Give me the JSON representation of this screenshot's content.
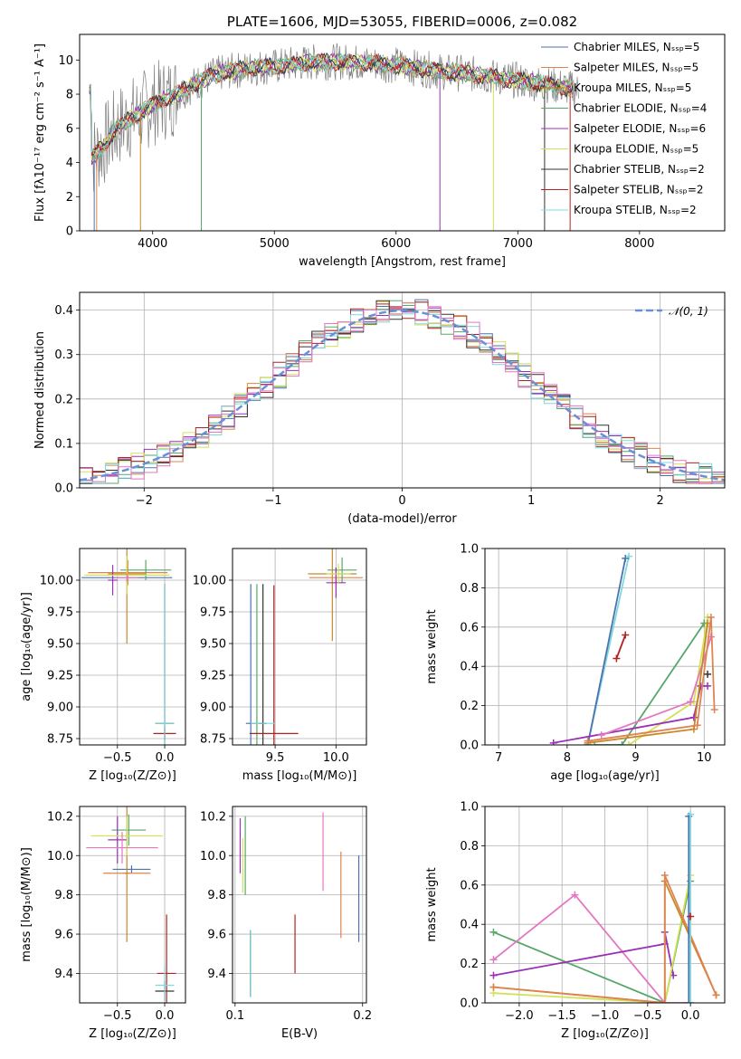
{
  "chart_data": [
    {
      "id": "spectrum",
      "type": "line",
      "title": "PLATE=1606, MJD=53055, FIBERID=0006, z=0.082",
      "xlabel": "wavelength [Angstrom, rest frame]",
      "ylabel": "Flux [fλ10⁻¹⁷ erg cm⁻² s⁻¹ A⁻¹]",
      "xlim": [
        3400,
        8700
      ],
      "ylim": [
        0,
        11.5
      ],
      "xticks": [
        4000,
        5000,
        6000,
        7000,
        8000
      ],
      "yticks": [
        0,
        2,
        4,
        6,
        8,
        10
      ],
      "grid": false,
      "legend_placement": "right",
      "observed_color": "#808080",
      "continuum": [
        [
          3500,
          4.3
        ],
        [
          3600,
          5.0
        ],
        [
          3700,
          6.0
        ],
        [
          3800,
          6.5
        ],
        [
          3900,
          6.9
        ],
        [
          4000,
          7.4
        ],
        [
          4100,
          7.7
        ],
        [
          4200,
          8.0
        ],
        [
          4300,
          8.4
        ],
        [
          4400,
          8.8
        ],
        [
          4500,
          9.1
        ],
        [
          4600,
          9.3
        ],
        [
          4700,
          9.4
        ],
        [
          4800,
          9.5
        ],
        [
          4900,
          9.6
        ],
        [
          5000,
          9.6
        ],
        [
          5200,
          9.8
        ],
        [
          5400,
          9.9
        ],
        [
          5600,
          9.9
        ],
        [
          5800,
          9.8
        ],
        [
          6000,
          9.7
        ],
        [
          6200,
          9.5
        ],
        [
          6400,
          9.3
        ],
        [
          6600,
          9.2
        ],
        [
          6800,
          9.0
        ],
        [
          7000,
          8.8
        ],
        [
          7200,
          8.6
        ],
        [
          7400,
          8.4
        ],
        [
          7500,
          8.2
        ]
      ],
      "series": [
        {
          "name": "Chabrier MILES, Nₛₛₚ=5",
          "color": "#4c72b0"
        },
        {
          "name": "Salpeter MILES, Nₛₛₚ=5",
          "color": "#dd8452"
        },
        {
          "name": "Kroupa MILES, Nₛₛₚ=5",
          "color": "#c8882a"
        },
        {
          "name": "Chabrier ELODIE, Nₛₛₚ=4",
          "color": "#55a868"
        },
        {
          "name": "Salpeter ELODIE, Nₛₛₚ=6",
          "color": "#9b30b8"
        },
        {
          "name": "Kroupa ELODIE, Nₛₛₚ=5",
          "color": "#d4e157"
        },
        {
          "name": "Chabrier STELIB, Nₛₛₚ=2",
          "color": "#333333"
        },
        {
          "name": "Salpeter STELIB, Nₛₛₚ=2",
          "color": "#b22222"
        },
        {
          "name": "Kroupa STELIB, Nₛₛₚ=2",
          "color": "#7fd8dc"
        }
      ]
    },
    {
      "id": "residuals",
      "type": "line",
      "xlabel": "(data-model)/error",
      "ylabel": "Normed distribution",
      "xlim": [
        -2.5,
        2.5
      ],
      "ylim": [
        0,
        0.44
      ],
      "xticks": [
        -2,
        -1,
        0,
        1,
        2
      ],
      "yticks": [
        0.0,
        0.1,
        0.2,
        0.3,
        0.4
      ],
      "grid": true,
      "legend": "𝒩(0, 1)",
      "legend_placement": "top-right",
      "gauss_color": "#6a8fd8",
      "hist_colors": [
        "#4c72b0",
        "#dd8452",
        "#55a868",
        "#9b30b8",
        "#d4e157",
        "#333333",
        "#b22222",
        "#7fd8dc",
        "#e377c2"
      ]
    },
    {
      "id": "age-z",
      "type": "scatter",
      "xlabel": "Z [log₁₀(Z/Z⊙)]",
      "ylabel": "age  [log₁₀(age/yr)]",
      "xlim": [
        -0.9,
        0.22
      ],
      "ylim": [
        8.7,
        10.25
      ],
      "xticks": [
        -0.5,
        0.0
      ],
      "yticks": [
        8.75,
        9.0,
        9.25,
        9.5,
        9.75,
        10.0
      ],
      "grid": true,
      "points": [
        {
          "x": -0.4,
          "y": 10.02,
          "xe": 0.48,
          "ye": 0.05,
          "color": "#4c72b0"
        },
        {
          "x": -0.39,
          "y": 10.06,
          "xe": 0.42,
          "ye": 0.1,
          "color": "#dd8452"
        },
        {
          "x": -0.4,
          "y": 10.05,
          "xe": 0.2,
          "ye": 0.55,
          "color": "#c8882a"
        },
        {
          "x": -0.2,
          "y": 10.08,
          "xe": 0.27,
          "ye": 0.08,
          "color": "#55a868"
        },
        {
          "x": -0.55,
          "y": 10.0,
          "xe": 0.05,
          "ye": 0.12,
          "color": "#9b30b8"
        },
        {
          "x": -0.4,
          "y": 10.04,
          "xe": 0.45,
          "ye": 0.15,
          "color": "#d4e157"
        },
        {
          "x": 0.0,
          "y": 8.87,
          "xe": 0.1,
          "ye": 1.1,
          "color": "#333333"
        },
        {
          "x": 0.0,
          "y": 8.79,
          "xe": 0.12,
          "ye": 0.05,
          "color": "#b22222"
        },
        {
          "x": 0.0,
          "y": 8.87,
          "xe": 0.1,
          "ye": 1.1,
          "color": "#7fd8dc"
        },
        {
          "x": -0.4,
          "y": 10.02,
          "xe": 0.12,
          "ye": 0.03,
          "color": "#e377c2"
        }
      ]
    },
    {
      "id": "age-mass",
      "type": "scatter",
      "xlabel": "mass [log₁₀(M/M⊙)]",
      "ylabel": "",
      "xlim": [
        9.15,
        10.25
      ],
      "ylim": [
        8.7,
        10.25
      ],
      "xticks": [
        9.5,
        10.0
      ],
      "yticks": [
        8.75,
        9.0,
        9.25,
        9.5,
        9.75,
        10.0
      ],
      "grid": true,
      "points": [
        {
          "x": 9.3,
          "y": 8.87,
          "xe": 0.04,
          "ye": 1.1,
          "color": "#4c72b0"
        },
        {
          "x": 9.35,
          "y": 8.87,
          "xe": 0.05,
          "ye": 1.1,
          "color": "#55a868"
        },
        {
          "x": 9.4,
          "y": 8.87,
          "xe": 0.03,
          "ye": 1.1,
          "color": "#333333"
        },
        {
          "x": 9.49,
          "y": 8.79,
          "xe": 0.2,
          "ye": 1.17,
          "color": "#b22222"
        },
        {
          "x": 9.4,
          "y": 8.87,
          "xe": 0.1,
          "ye": 0.0,
          "color": "#7fd8dc"
        },
        {
          "x": 10.0,
          "y": 10.02,
          "xe": 0.22,
          "ye": 0.08,
          "color": "#dd8452"
        },
        {
          "x": 9.97,
          "y": 10.05,
          "xe": 0.2,
          "ye": 0.53,
          "color": "#c8882a"
        },
        {
          "x": 10.05,
          "y": 10.08,
          "xe": 0.12,
          "ye": 0.1,
          "color": "#55a868"
        },
        {
          "x": 10.0,
          "y": 9.98,
          "xe": 0.08,
          "ye": 0.12,
          "color": "#9b30b8"
        },
        {
          "x": 10.02,
          "y": 10.05,
          "xe": 0.1,
          "ye": 0.08,
          "color": "#d4e157"
        }
      ]
    },
    {
      "id": "weight-age",
      "type": "line",
      "xlabel": "age  [log₁₀(age/yr)]",
      "ylabel": "mass weight",
      "xlim": [
        6.8,
        10.3
      ],
      "ylim": [
        0,
        1.0
      ],
      "xticks": [
        7,
        8,
        9,
        10
      ],
      "yticks": [
        0.0,
        0.2,
        0.4,
        0.6,
        0.8,
        1.0
      ],
      "grid": true,
      "series": [
        {
          "color": "#7fd8dc",
          "points": [
            [
              8.3,
              0.0
            ],
            [
              8.9,
              0.96
            ]
          ]
        },
        {
          "color": "#4c72b0",
          "points": [
            [
              8.3,
              0.0
            ],
            [
              8.85,
              0.95
            ]
          ]
        },
        {
          "color": "#b22222",
          "points": [
            [
              8.72,
              0.44
            ],
            [
              8.85,
              0.56
            ]
          ]
        },
        {
          "color": "#55a868",
          "points": [
            [
              8.4,
              0.0
            ],
            [
              8.8,
              0.0
            ],
            [
              10.0,
              0.62
            ]
          ]
        },
        {
          "color": "#d4e157",
          "points": [
            [
              8.9,
              0.0
            ],
            [
              9.85,
              0.22
            ],
            [
              10.05,
              0.65
            ]
          ]
        },
        {
          "color": "#9b30b8",
          "points": [
            [
              7.8,
              0.01
            ],
            [
              9.85,
              0.14
            ],
            [
              9.95,
              0.3
            ],
            [
              10.05,
              0.3
            ]
          ]
        },
        {
          "color": "#e377c2",
          "points": [
            [
              8.5,
              0.05
            ],
            [
              9.8,
              0.22
            ],
            [
              10.1,
              0.55
            ]
          ]
        },
        {
          "color": "#c8882a",
          "points": [
            [
              8.3,
              0.01
            ],
            [
              9.85,
              0.08
            ],
            [
              10.05,
              0.62
            ]
          ]
        },
        {
          "color": "#dd8452",
          "points": [
            [
              8.3,
              0.02
            ],
            [
              9.9,
              0.1
            ],
            [
              10.1,
              0.65
            ],
            [
              10.15,
              0.18
            ]
          ]
        },
        {
          "color": "#333333",
          "points": [
            [
              10.05,
              0.36
            ]
          ]
        }
      ]
    },
    {
      "id": "mass-z",
      "type": "scatter",
      "xlabel": "Z [log₁₀(Z/Z⊙)]",
      "ylabel": "mass [log₁₀(M/M⊙)]",
      "xlim": [
        -0.9,
        0.22
      ],
      "ylim": [
        9.25,
        10.25
      ],
      "xticks": [
        -0.5,
        0.0
      ],
      "yticks": [
        9.4,
        9.6,
        9.8,
        10.0,
        10.2
      ],
      "grid": true,
      "points": [
        {
          "x": -0.35,
          "y": 9.93,
          "xe": 0.2,
          "ye": 0.02,
          "color": "#4c72b0"
        },
        {
          "x": -0.4,
          "y": 9.91,
          "xe": 0.25,
          "ye": 0.0,
          "color": "#dd8452"
        },
        {
          "x": -0.4,
          "y": 9.91,
          "xe": 0.03,
          "ye": 0.35,
          "color": "#c8882a"
        },
        {
          "x": -0.38,
          "y": 10.13,
          "xe": 0.18,
          "ye": 0.08,
          "color": "#55a868"
        },
        {
          "x": -0.5,
          "y": 10.08,
          "xe": 0.1,
          "ye": 0.12,
          "color": "#9b30b8"
        },
        {
          "x": -0.4,
          "y": 10.1,
          "xe": 0.38,
          "ye": 0.1,
          "color": "#d4e157"
        },
        {
          "x": 0.0,
          "y": 9.31,
          "xe": 0.1,
          "ye": 0.05,
          "color": "#333333"
        },
        {
          "x": 0.02,
          "y": 9.4,
          "xe": 0.1,
          "ye": 0.3,
          "color": "#b22222"
        },
        {
          "x": 0.0,
          "y": 9.34,
          "xe": 0.1,
          "ye": 0.1,
          "color": "#7fd8dc"
        },
        {
          "x": -0.45,
          "y": 10.04,
          "xe": 0.38,
          "ye": 0.08,
          "color": "#e377c2"
        }
      ]
    },
    {
      "id": "mass-ebv",
      "type": "scatter",
      "xlabel": "E(B-V)",
      "ylabel": "",
      "xlim": [
        0.098,
        0.203
      ],
      "ylim": [
        9.25,
        10.25
      ],
      "xticks": [
        0.1,
        0.2
      ],
      "yticks": [
        9.4,
        9.6,
        9.8,
        10.0,
        10.2
      ],
      "grid": true,
      "points": [
        {
          "x": 0.197,
          "y": 9.78,
          "xe": 0.0,
          "ye": 0.22,
          "color": "#4c72b0"
        },
        {
          "x": 0.183,
          "y": 9.8,
          "xe": 0.0,
          "ye": 0.22,
          "color": "#dd8452"
        },
        {
          "x": 0.108,
          "y": 10.0,
          "xe": 0.0,
          "ye": 0.2,
          "color": "#55a868"
        },
        {
          "x": 0.104,
          "y": 10.05,
          "xe": 0.0,
          "ye": 0.14,
          "color": "#9b30b8"
        },
        {
          "x": 0.106,
          "y": 9.95,
          "xe": 0.0,
          "ye": 0.14,
          "color": "#d4e157"
        },
        {
          "x": 0.112,
          "y": 9.45,
          "xe": 0.0,
          "ye": 0.17,
          "color": "#333333"
        },
        {
          "x": 0.147,
          "y": 9.55,
          "xe": 0.0,
          "ye": 0.15,
          "color": "#b22222"
        },
        {
          "x": 0.112,
          "y": 9.45,
          "xe": 0.0,
          "ye": 0.17,
          "color": "#7fd8dc"
        },
        {
          "x": 0.169,
          "y": 10.02,
          "xe": 0.0,
          "ye": 0.2,
          "color": "#e377c2"
        }
      ]
    },
    {
      "id": "weight-z",
      "type": "line",
      "xlabel": "Z [log₁₀(Z/Z⊙)]",
      "ylabel": "mass weight",
      "xlim": [
        -2.4,
        0.4
      ],
      "ylim": [
        0,
        1.0
      ],
      "xticks": [
        -2.0,
        -1.5,
        -1.0,
        -0.5,
        0.0
      ],
      "yticks": [
        0.0,
        0.2,
        0.4,
        0.6,
        0.8,
        1.0
      ],
      "grid": true,
      "series": [
        {
          "color": "#55a868",
          "points": [
            [
              -2.3,
              0.36
            ],
            [
              -0.3,
              0.0
            ],
            [
              0.0,
              0.62
            ]
          ]
        },
        {
          "color": "#e377c2",
          "points": [
            [
              -2.3,
              0.22
            ],
            [
              -1.35,
              0.55
            ],
            [
              -0.3,
              0.0
            ],
            [
              0.0,
              0.0
            ]
          ]
        },
        {
          "color": "#9b30b8",
          "points": [
            [
              -2.3,
              0.14
            ],
            [
              -0.3,
              0.3
            ],
            [
              -0.3,
              0.36
            ],
            [
              -0.2,
              0.14
            ]
          ]
        },
        {
          "color": "#d4e157",
          "points": [
            [
              -2.3,
              0.05
            ],
            [
              -0.3,
              0.0
            ],
            [
              0.0,
              0.65
            ]
          ]
        },
        {
          "color": "#c8882a",
          "points": [
            [
              -2.3,
              0.08
            ],
            [
              -0.3,
              0.0
            ],
            [
              -0.3,
              0.62
            ],
            [
              0.3,
              0.04
            ]
          ]
        },
        {
          "color": "#dd8452",
          "points": [
            [
              -2.3,
              0.08
            ],
            [
              -0.3,
              0.0
            ],
            [
              -0.3,
              0.65
            ],
            [
              0.3,
              0.04
            ]
          ]
        },
        {
          "color": "#4c72b0",
          "points": [
            [
              -0.02,
              0.0
            ],
            [
              -0.02,
              0.95
            ]
          ]
        },
        {
          "color": "#7fd8dc",
          "points": [
            [
              0.0,
              0.0
            ],
            [
              0.0,
              0.96
            ]
          ]
        },
        {
          "color": "#b22222",
          "points": [
            [
              0.0,
              0.44
            ]
          ]
        }
      ]
    }
  ]
}
